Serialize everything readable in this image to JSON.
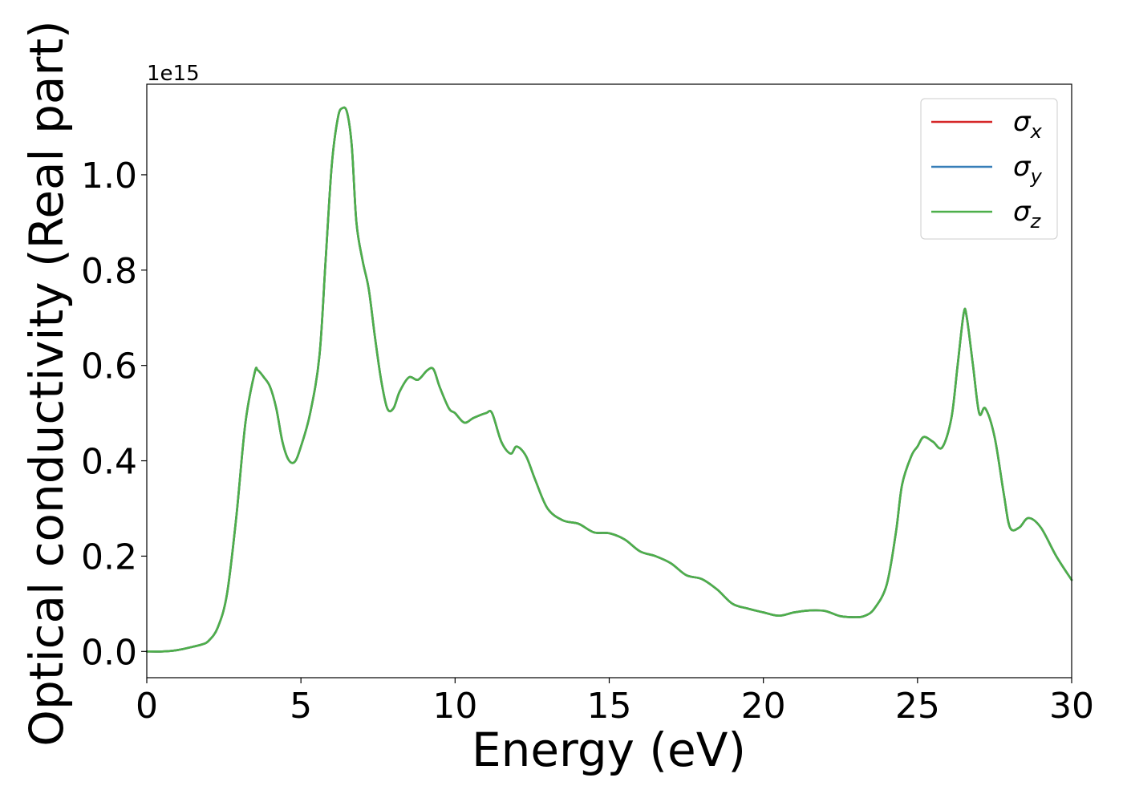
{
  "chart_data": {
    "type": "line",
    "xlabel": "Energy (eV)",
    "ylabel": "Optical conductivity (Real part)",
    "y_offset_label": "1e15",
    "xlim": [
      0,
      30
    ],
    "ylim": [
      -0.055,
      1.19
    ],
    "x_ticks": [
      0,
      5,
      10,
      15,
      20,
      25,
      30
    ],
    "x_tick_labels": [
      "0",
      "5",
      "10",
      "15",
      "20",
      "25",
      "30"
    ],
    "y_ticks": [
      0.0,
      0.2,
      0.4,
      0.6,
      0.8,
      1.0
    ],
    "y_tick_labels": [
      "0.0",
      "0.2",
      "0.4",
      "0.6",
      "0.8",
      "1.0"
    ],
    "grid": false,
    "legend_position": "top-right",
    "legend": [
      {
        "symbol": "σ",
        "sub": "x",
        "color": "#d62728"
      },
      {
        "symbol": "σ",
        "sub": "y",
        "color": "#377eb8"
      },
      {
        "symbol": "σ",
        "sub": "z",
        "color": "#4daf4a"
      }
    ],
    "x": [
      0,
      0.5,
      1.0,
      1.5,
      1.8,
      2.0,
      2.3,
      2.6,
      2.9,
      3.2,
      3.5,
      3.6,
      3.8,
      4.0,
      4.2,
      4.4,
      4.6,
      4.8,
      5.0,
      5.3,
      5.6,
      5.8,
      6.0,
      6.2,
      6.35,
      6.5,
      6.65,
      6.8,
      7.0,
      7.2,
      7.4,
      7.6,
      7.8,
      8.0,
      8.2,
      8.5,
      8.8,
      9.1,
      9.3,
      9.5,
      9.8,
      10.0,
      10.3,
      10.6,
      11.0,
      11.2,
      11.5,
      11.8,
      12.0,
      12.3,
      12.6,
      13.0,
      13.5,
      14.0,
      14.5,
      15.0,
      15.5,
      16.0,
      16.5,
      17.0,
      17.5,
      18.0,
      18.5,
      19.0,
      19.5,
      20.0,
      20.5,
      21.0,
      21.5,
      22.0,
      22.5,
      23.0,
      23.3,
      23.6,
      24.0,
      24.3,
      24.5,
      24.8,
      25.0,
      25.2,
      25.5,
      25.8,
      26.1,
      26.3,
      26.5,
      26.6,
      26.8,
      27.0,
      27.2,
      27.5,
      27.8,
      28.0,
      28.3,
      28.6,
      29.0,
      29.5,
      30.0
    ],
    "series": [
      {
        "name": "σx",
        "color": "#d62728",
        "values": [
          0.0,
          0.0,
          0.003,
          0.01,
          0.015,
          0.022,
          0.05,
          0.12,
          0.28,
          0.48,
          0.585,
          0.59,
          0.575,
          0.555,
          0.51,
          0.44,
          0.402,
          0.398,
          0.43,
          0.5,
          0.62,
          0.82,
          1.02,
          1.12,
          1.14,
          1.13,
          1.06,
          0.9,
          0.82,
          0.76,
          0.66,
          0.57,
          0.51,
          0.51,
          0.545,
          0.575,
          0.57,
          0.59,
          0.592,
          0.555,
          0.51,
          0.5,
          0.48,
          0.49,
          0.5,
          0.5,
          0.44,
          0.415,
          0.43,
          0.41,
          0.36,
          0.3,
          0.275,
          0.268,
          0.25,
          0.248,
          0.235,
          0.21,
          0.2,
          0.185,
          0.16,
          0.152,
          0.13,
          0.1,
          0.09,
          0.082,
          0.075,
          0.082,
          0.086,
          0.085,
          0.074,
          0.072,
          0.075,
          0.09,
          0.14,
          0.25,
          0.35,
          0.41,
          0.43,
          0.45,
          0.44,
          0.428,
          0.49,
          0.6,
          0.71,
          0.7,
          0.6,
          0.5,
          0.51,
          0.45,
          0.33,
          0.26,
          0.26,
          0.28,
          0.26,
          0.2,
          0.15
        ]
      },
      {
        "name": "σy",
        "color": "#377eb8",
        "values": [
          0.0,
          0.0,
          0.003,
          0.01,
          0.015,
          0.022,
          0.05,
          0.12,
          0.28,
          0.48,
          0.585,
          0.59,
          0.575,
          0.555,
          0.51,
          0.44,
          0.402,
          0.398,
          0.43,
          0.5,
          0.62,
          0.82,
          1.02,
          1.12,
          1.14,
          1.13,
          1.06,
          0.9,
          0.82,
          0.76,
          0.66,
          0.57,
          0.51,
          0.51,
          0.545,
          0.575,
          0.57,
          0.59,
          0.592,
          0.555,
          0.51,
          0.5,
          0.48,
          0.49,
          0.5,
          0.5,
          0.44,
          0.415,
          0.43,
          0.41,
          0.36,
          0.3,
          0.275,
          0.268,
          0.25,
          0.248,
          0.235,
          0.21,
          0.2,
          0.185,
          0.16,
          0.152,
          0.13,
          0.1,
          0.09,
          0.082,
          0.075,
          0.082,
          0.086,
          0.085,
          0.074,
          0.072,
          0.075,
          0.09,
          0.14,
          0.25,
          0.35,
          0.41,
          0.43,
          0.45,
          0.44,
          0.428,
          0.49,
          0.6,
          0.71,
          0.7,
          0.6,
          0.5,
          0.51,
          0.45,
          0.33,
          0.26,
          0.26,
          0.28,
          0.26,
          0.2,
          0.15
        ]
      },
      {
        "name": "σz",
        "color": "#4daf4a",
        "values": [
          0.0,
          0.0,
          0.003,
          0.01,
          0.015,
          0.022,
          0.05,
          0.12,
          0.28,
          0.48,
          0.585,
          0.59,
          0.575,
          0.555,
          0.51,
          0.44,
          0.402,
          0.398,
          0.43,
          0.5,
          0.62,
          0.82,
          1.02,
          1.12,
          1.14,
          1.13,
          1.06,
          0.9,
          0.82,
          0.76,
          0.66,
          0.57,
          0.51,
          0.51,
          0.545,
          0.575,
          0.57,
          0.59,
          0.592,
          0.555,
          0.51,
          0.5,
          0.48,
          0.49,
          0.5,
          0.5,
          0.44,
          0.415,
          0.43,
          0.41,
          0.36,
          0.3,
          0.275,
          0.268,
          0.25,
          0.248,
          0.235,
          0.21,
          0.2,
          0.185,
          0.16,
          0.152,
          0.13,
          0.1,
          0.09,
          0.082,
          0.075,
          0.082,
          0.086,
          0.085,
          0.074,
          0.072,
          0.075,
          0.09,
          0.14,
          0.25,
          0.35,
          0.41,
          0.43,
          0.45,
          0.44,
          0.428,
          0.49,
          0.6,
          0.71,
          0.7,
          0.6,
          0.5,
          0.51,
          0.45,
          0.33,
          0.26,
          0.26,
          0.28,
          0.26,
          0.2,
          0.15
        ]
      }
    ]
  }
}
